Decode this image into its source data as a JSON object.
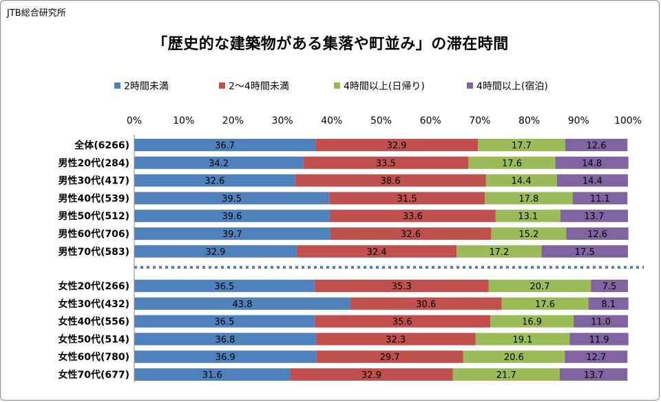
{
  "source": "JTB総合研究所",
  "chart_data": {
    "type": "bar",
    "orientation": "horizontal",
    "stacked": "100%",
    "title": "「歴史的な建築物がある集落や町並み」の滞在時間",
    "x_ticks": [
      "0%",
      "10%",
      "20%",
      "30%",
      "40%",
      "50%",
      "60%",
      "70%",
      "80%",
      "90%",
      "100%"
    ],
    "xlim": [
      0,
      100
    ],
    "legend_position": "top",
    "grid": false,
    "categories": [
      "全体(6266)",
      "男性20代(284)",
      "男性30代(417)",
      "男性40代(539)",
      "男性50代(512)",
      "男性60代(706)",
      "男性70代(583)",
      "女性20代(266)",
      "女性30代(432)",
      "女性40代(556)",
      "女性50代(514)",
      "女性60代(780)",
      "女性70代(677)"
    ],
    "group_break_after_index": 6,
    "series": [
      {
        "name": "2時間未満",
        "color": "#4f81bd",
        "values": [
          36.7,
          34.2,
          32.6,
          39.5,
          39.6,
          39.7,
          32.9,
          36.5,
          43.8,
          36.5,
          36.8,
          36.9,
          31.6
        ]
      },
      {
        "name": "2〜4時間未満",
        "color": "#c0504d",
        "values": [
          32.9,
          33.5,
          38.6,
          31.5,
          33.6,
          32.6,
          32.4,
          35.3,
          30.6,
          35.6,
          32.3,
          29.7,
          32.9
        ]
      },
      {
        "name": "4時間以上(日帰り)",
        "color": "#9bbb59",
        "values": [
          17.7,
          17.6,
          14.4,
          17.8,
          13.1,
          15.2,
          17.2,
          20.7,
          17.6,
          16.9,
          19.1,
          20.6,
          21.7
        ]
      },
      {
        "name": "4時間以上(宿泊)",
        "color": "#8064a2",
        "values": [
          12.6,
          14.8,
          14.4,
          11.1,
          13.7,
          12.6,
          17.5,
          7.5,
          8.1,
          11.0,
          11.9,
          12.7,
          13.7
        ]
      }
    ],
    "value_labels": [
      [
        "36.7",
        "32.9",
        "17.7",
        "12.6"
      ],
      [
        "34.2",
        "33.5",
        "17.6",
        "14.8"
      ],
      [
        "32.6",
        "38.6",
        "14.4",
        "14.4"
      ],
      [
        "39.5",
        "31.5",
        "17.8",
        "11.1"
      ],
      [
        "39.6",
        "33.6",
        "13.1",
        "13.7"
      ],
      [
        "39.7",
        "32.6",
        "15.2",
        "12.6"
      ],
      [
        "32.9",
        "32.4",
        "17.2",
        "17.5"
      ],
      [
        "36.5",
        "35.3",
        "20.7",
        "7.5"
      ],
      [
        "43.8",
        "30.6",
        "17.6",
        "8.1"
      ],
      [
        "36.5",
        "35.6",
        "16.9",
        "11.0"
      ],
      [
        "36.8",
        "32.3",
        "19.1",
        "11.9"
      ],
      [
        "36.9",
        "29.7",
        "20.6",
        "12.7"
      ],
      [
        "31.6",
        "32.9",
        "21.7",
        "13.7"
      ]
    ],
    "separator_color": "#4f81bd"
  }
}
